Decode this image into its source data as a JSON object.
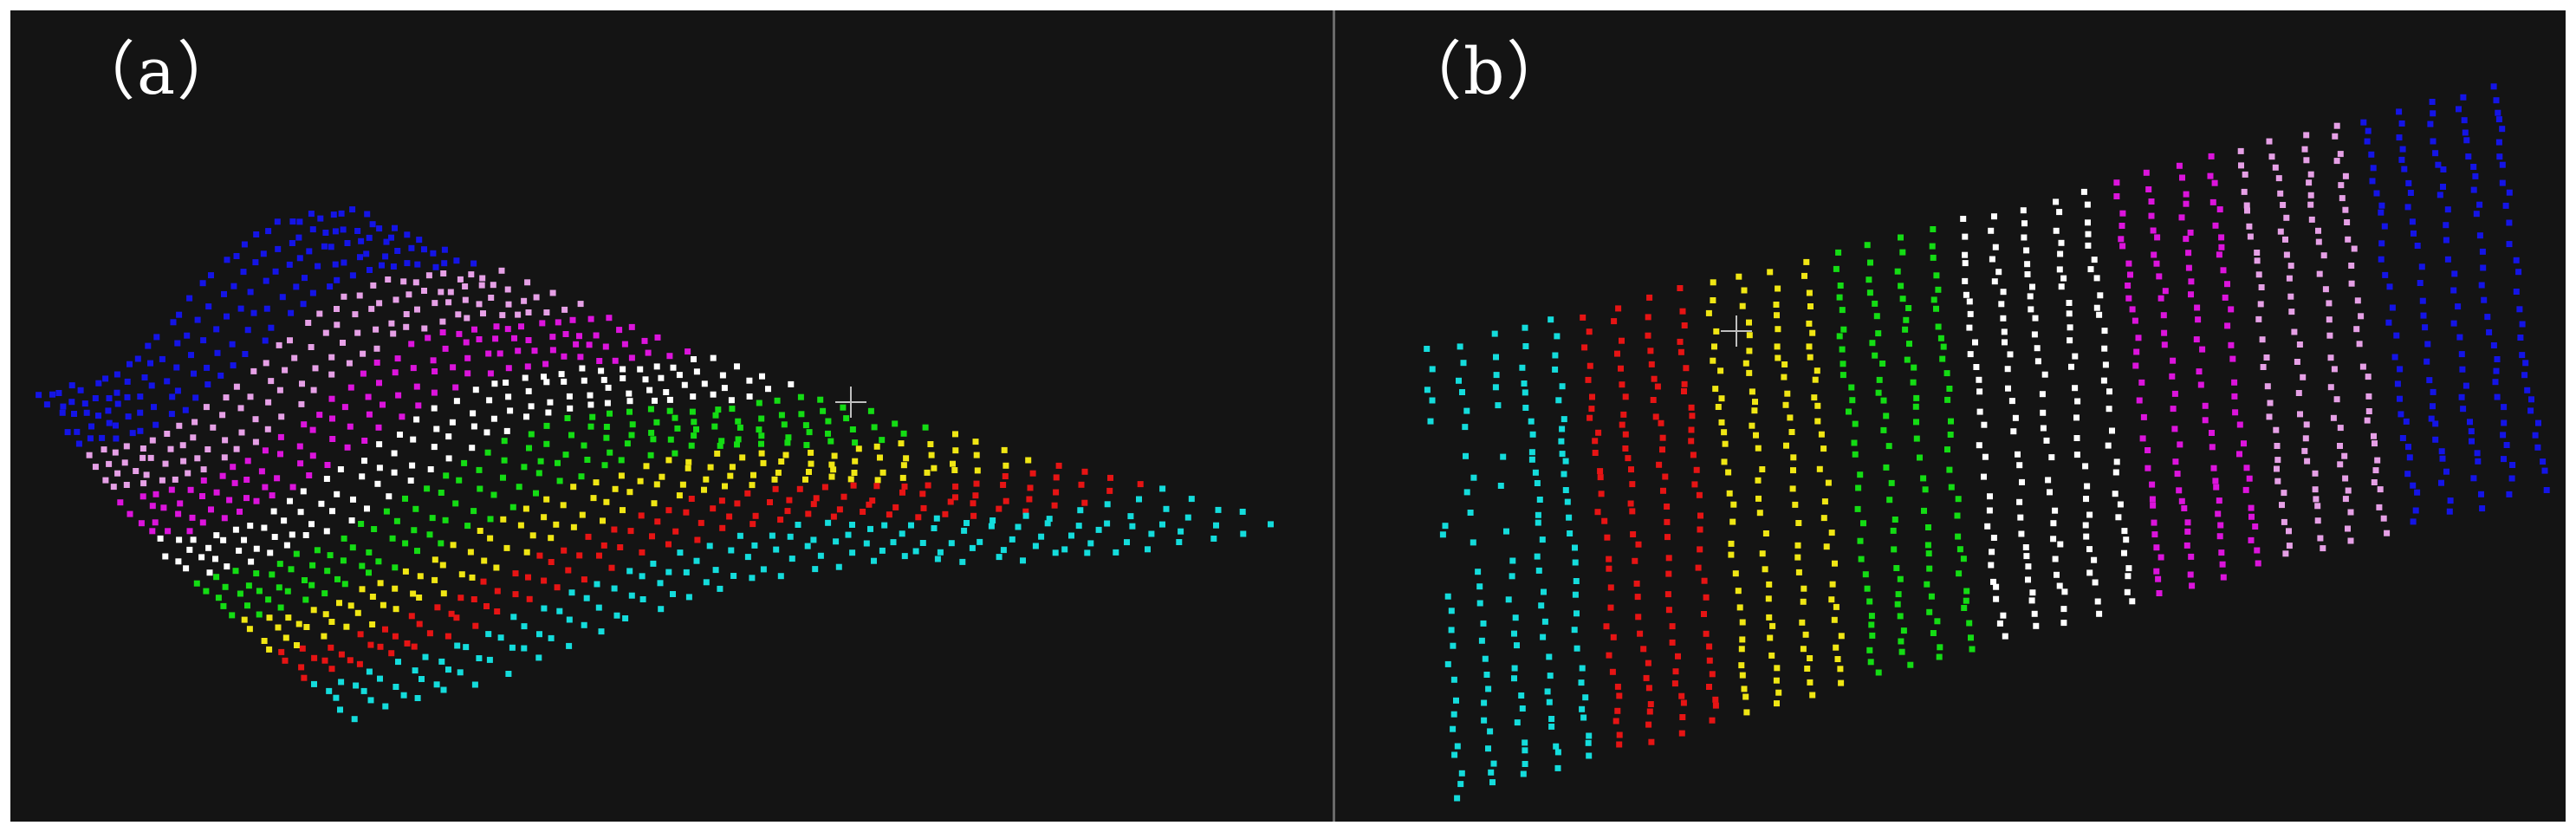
{
  "figure": {
    "panels": [
      {
        "label": "（a）",
        "background": "#141414",
        "bands": [
          {
            "color": "#1414e6",
            "role": "band-1"
          },
          {
            "color": "#e6a0e6",
            "role": "band-2"
          },
          {
            "color": "#dc14dc",
            "role": "band-3"
          },
          {
            "color": "#ffffff",
            "role": "band-4"
          },
          {
            "color": "#14dc14",
            "role": "band-5"
          },
          {
            "color": "#f0e614",
            "role": "band-6"
          },
          {
            "color": "#e61414",
            "role": "band-7"
          },
          {
            "color": "#14dcdc",
            "role": "band-8"
          }
        ],
        "cursor_icon": "crosshair-icon"
      },
      {
        "label": "（b）",
        "background": "#141414",
        "bands": [
          {
            "color": "#14dcdc",
            "role": "band-1"
          },
          {
            "color": "#e61414",
            "role": "band-2"
          },
          {
            "color": "#f0e614",
            "role": "band-3"
          },
          {
            "color": "#14dc14",
            "role": "band-4"
          },
          {
            "color": "#ffffff",
            "role": "band-5"
          },
          {
            "color": "#dc14dc",
            "role": "band-6"
          },
          {
            "color": "#e6a0e6",
            "role": "band-7"
          },
          {
            "color": "#1414e6",
            "role": "band-8"
          }
        ],
        "cursor_icon": "crosshair-icon"
      }
    ]
  }
}
